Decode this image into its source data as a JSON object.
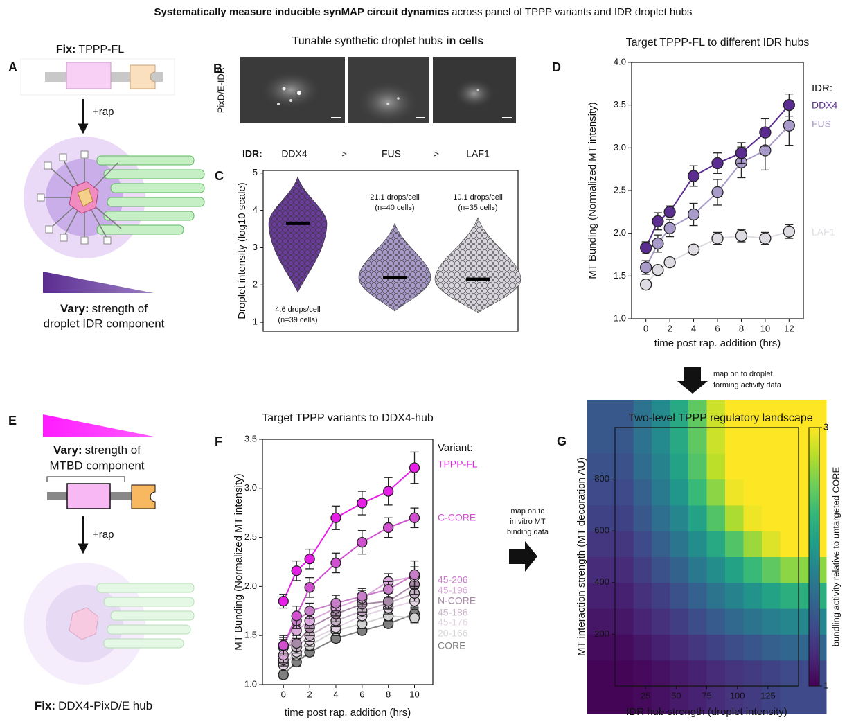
{
  "title": {
    "bold": "Systematically measure inducible synMAP circuit dynamics",
    "rest": "across panel of TPPP variants and IDR droplet hubs"
  },
  "panel_a": {
    "letter": "A",
    "fix_label": "Fix:",
    "fix_value": "TPPP-FL",
    "arrow_label": "+rap",
    "vary_label": "Vary:",
    "vary_text_1": "strength of",
    "vary_text_2": "droplet IDR component"
  },
  "panel_b": {
    "letter": "B",
    "title_plain": "Tunable synthetic droplet hubs",
    "title_bold": "in cells",
    "row_label": "PixD/E-IDR",
    "idr_label": "IDR:",
    "idrs": [
      "DDX4",
      "FUS",
      "LAF1"
    ],
    "separators": [
      ">",
      ">"
    ]
  },
  "panel_e": {
    "letter": "E",
    "vary_label": "Vary:",
    "vary_text_1": "strength of",
    "vary_text_2": "MTBD component",
    "arrow_label": "+rap",
    "fix_label": "Fix:",
    "fix_value": "DDX4-PixD/E hub"
  },
  "arrows": {
    "d_to_g": [
      "map on to droplet",
      "forming activity data"
    ],
    "f_to_g": [
      "map on to",
      "in vitro MT",
      "binding data"
    ]
  },
  "chart_data": [
    {
      "panel_label": "C",
      "type": "swarm",
      "ylabel": "Droplet intensity (log10 scale)",
      "ylim": [
        0.76,
        5.07
      ],
      "yticks": [
        1,
        2,
        3,
        4,
        5
      ],
      "colors": [
        "#6a3d9a",
        "#a99bc9",
        "#d9d6de"
      ],
      "medians": [
        3.65,
        2.2,
        2.15
      ],
      "mins": [
        1.8,
        1.3,
        1.25
      ],
      "maxs": [
        4.9,
        3.65,
        3.8
      ],
      "annotations": [
        [
          "4.6 drops/cell",
          "(n=39 cells)"
        ],
        [
          "21.1 drops/cell",
          "(n=40 cells)"
        ],
        [
          "10.1 drops/cell",
          "(n=35 cells)"
        ]
      ]
    },
    {
      "panel_label": "D",
      "type": "line",
      "title": "Target TPPP-FL to different IDR hubs",
      "xlabel": "time post rap. addition (hrs)",
      "ylabel": "MT Bunding (Normalized MT intensity)",
      "legend_title": "IDR:",
      "x": [
        0,
        1,
        2,
        4,
        6,
        8,
        10,
        12
      ],
      "xlim": [
        -1.2,
        13.2
      ],
      "xticks": [
        0,
        2,
        4,
        6,
        8,
        10,
        12
      ],
      "ylim": [
        1,
        4
      ],
      "yticks": [
        {
          "value": 1,
          "label": "1.0"
        },
        1.5,
        {
          "value": 2,
          "label": "2.0"
        },
        2.5,
        {
          "value": 3,
          "label": "3.0"
        },
        3.5,
        {
          "value": 4,
          "label": "4.0"
        }
      ],
      "series": [
        {
          "name": "DDX4",
          "color": "#5b2d91",
          "values": [
            1.83,
            2.14,
            2.25,
            2.67,
            2.82,
            2.94,
            3.18,
            3.5
          ],
          "errors": [
            0.07,
            0.1,
            0.07,
            0.12,
            0.12,
            0.12,
            0.16,
            0.13
          ]
        },
        {
          "name": "FUS",
          "color": "#a99bc9",
          "values": [
            1.6,
            1.88,
            2.06,
            2.22,
            2.48,
            2.83,
            2.97,
            3.26
          ],
          "errors": [
            0.08,
            0.1,
            0.1,
            0.13,
            0.15,
            0.18,
            0.23,
            0.23
          ]
        },
        {
          "name": "LAF1",
          "color": "#dedbe3",
          "values": [
            1.4,
            1.57,
            1.66,
            1.81,
            1.94,
            1.97,
            1.94,
            2.02
          ],
          "errors": [
            0.04,
            0.04,
            0.04,
            0.04,
            0.07,
            0.07,
            0.07,
            0.08
          ]
        }
      ]
    },
    {
      "panel_label": "F",
      "type": "line",
      "title": "Target TPPP variants to DDX4-hub",
      "xlabel": "time post rap. addition (hrs)",
      "ylabel": "MT Bunding (Normalized MT intensity)",
      "legend_title": "Variant:",
      "x": [
        0,
        1,
        2,
        4,
        6,
        8,
        10
      ],
      "xlim": [
        -1.6,
        11.4
      ],
      "xticks": [
        0,
        2,
        4,
        6,
        8,
        10
      ],
      "ylim": [
        1,
        3.5
      ],
      "yticks": [
        {
          "value": 1,
          "label": "1.0"
        },
        1.5,
        {
          "value": 2,
          "label": "2.0"
        },
        2.5,
        {
          "value": 3,
          "label": "3.0"
        },
        3.5
      ],
      "series": [
        {
          "name": "TPPP-FL",
          "color": "#e61ee6",
          "values": [
            1.85,
            2.16,
            2.28,
            2.7,
            2.85,
            2.97,
            3.21
          ],
          "errors": [
            0.07,
            0.1,
            0.1,
            0.12,
            0.12,
            0.14,
            0.16
          ]
        },
        {
          "name": "C-CORE",
          "color": "#d050d0",
          "values": [
            1.4,
            1.7,
            1.99,
            2.24,
            2.45,
            2.6,
            2.7
          ],
          "errors": [
            0.1,
            0.1,
            0.1,
            0.1,
            0.12,
            0.1,
            0.1
          ]
        },
        {
          "name": "45-206",
          "color": "#c77dc7",
          "values": [
            1.4,
            1.65,
            1.75,
            1.83,
            1.9,
            1.97,
            2.12
          ],
          "errors": [
            0.08,
            0.08,
            0.08,
            0.08,
            0.08,
            0.08,
            0.14
          ]
        },
        {
          "name": "45-196",
          "color": "#dba8db",
          "values": [
            1.3,
            1.55,
            1.65,
            1.78,
            1.88,
            2.05,
            2.1
          ],
          "errors": [
            0.08,
            0.08,
            0.08,
            0.08,
            0.08,
            0.08,
            0.1
          ]
        },
        {
          "name": "N-CORE",
          "color": "#a88aa8",
          "values": [
            1.38,
            1.42,
            1.58,
            1.72,
            1.82,
            1.85,
            2.02
          ],
          "errors": [
            0.08,
            0.08,
            0.08,
            0.08,
            0.08,
            0.08,
            0.1
          ]
        },
        {
          "name": "45-186",
          "color": "#c9b3c9",
          "values": [
            1.25,
            1.38,
            1.5,
            1.65,
            1.75,
            1.83,
            1.93
          ],
          "errors": [
            0.06,
            0.06,
            0.06,
            0.06,
            0.06,
            0.06,
            0.08
          ]
        },
        {
          "name": "45-176",
          "color": "#e3d3e3",
          "values": [
            1.2,
            1.33,
            1.45,
            1.58,
            1.7,
            1.78,
            1.85
          ],
          "errors": [
            0.06,
            0.06,
            0.06,
            0.06,
            0.06,
            0.06,
            0.06
          ]
        },
        {
          "name": "20-166",
          "color": "#d4d4d4",
          "values": [
            1.22,
            1.3,
            1.4,
            1.55,
            1.62,
            1.7,
            1.68
          ],
          "errors": [
            0.05,
            0.05,
            0.05,
            0.05,
            0.05,
            0.05,
            0.05
          ]
        },
        {
          "name": "CORE",
          "color": "#7f7f7f",
          "values": [
            1.1,
            1.23,
            1.33,
            1.47,
            1.55,
            1.62,
            1.72
          ],
          "errors": [
            0.04,
            0.04,
            0.04,
            0.04,
            0.04,
            0.04,
            0.05
          ]
        }
      ]
    },
    {
      "panel_label": "G",
      "type": "heatmap",
      "title": "Two-level TPPP regulatory landscape",
      "xlabel": "IDR hub strength (droplet intensity)",
      "ylabel": "MT interaction strength  (MT decoration AU)",
      "colorbar_label": "bundling activity relative to untargeted CORE",
      "colormap": "viridis",
      "xlim": [
        0,
        150
      ],
      "xticks": [
        25,
        50,
        75,
        100,
        125
      ],
      "ylim": [
        0,
        1000
      ],
      "yticks": [
        200,
        400,
        600,
        800
      ],
      "zlim": [
        1,
        3
      ],
      "zticks": [
        1,
        3
      ],
      "x": [
        7.5,
        22.5,
        37.5,
        52.5,
        67.5,
        82.5,
        97.5,
        112.5,
        127.5,
        142.5
      ],
      "y": [
        50,
        150,
        250,
        350,
        450,
        550,
        650,
        750,
        850,
        950
      ],
      "z": [
        [
          1.02,
          1.05,
          1.09,
          1.14,
          1.19,
          1.25,
          1.3,
          1.35,
          1.4,
          1.45
        ],
        [
          1.06,
          1.12,
          1.18,
          1.25,
          1.32,
          1.4,
          1.47,
          1.54,
          1.6,
          1.66
        ],
        [
          1.12,
          1.2,
          1.28,
          1.37,
          1.47,
          1.57,
          1.67,
          1.76,
          1.85,
          1.92
        ],
        [
          1.18,
          1.28,
          1.38,
          1.5,
          1.62,
          1.76,
          1.9,
          2.02,
          2.15,
          2.25
        ],
        [
          1.25,
          1.37,
          1.5,
          1.63,
          1.8,
          1.98,
          2.15,
          2.35,
          2.5,
          2.65
        ],
        [
          1.32,
          1.45,
          1.6,
          1.78,
          1.98,
          2.2,
          2.45,
          2.7,
          2.9,
          3
        ],
        [
          1.4,
          1.55,
          1.72,
          1.92,
          2.15,
          2.45,
          2.75,
          2.95,
          3,
          3
        ],
        [
          1.45,
          1.62,
          1.82,
          2.05,
          2.35,
          2.65,
          2.95,
          3,
          3,
          3
        ],
        [
          1.5,
          1.7,
          1.9,
          2.15,
          2.45,
          2.8,
          3,
          3,
          3,
          3
        ],
        [
          1.55,
          1.75,
          1.95,
          2.2,
          2.5,
          2.85,
          3,
          3,
          3,
          3
        ]
      ]
    }
  ]
}
